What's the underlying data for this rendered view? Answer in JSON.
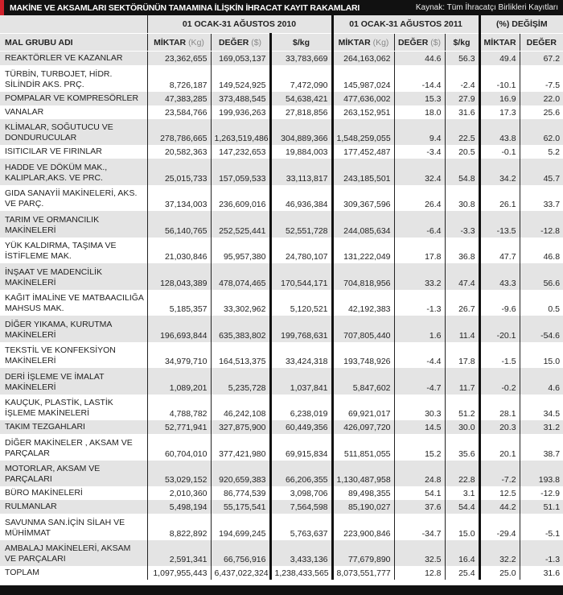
{
  "title": "MAKİNE VE AKSAMLARI SEKTÖRÜNÜN TAMAMINA İLİŞKİN İHRACAT KAYIT RAKAMLARI",
  "source": "Kaynak: Tüm İhracatçı Birlikleri Kayıtları",
  "groups": {
    "p2010": "01 OCAK-31 AĞUSTOS 2010",
    "p2011": "01 OCAK-31 AĞUSTOS 2011",
    "change": "(%) DEĞİŞİM"
  },
  "columns": {
    "name": "MAL GRUBU ADI",
    "miktar": "MİKTAR",
    "kg": "(Kg)",
    "deger": "DEĞER",
    "usd": "($)",
    "perkg": "$/kg",
    "c_miktar": "MİKTAR",
    "c_deger": "DEĞER"
  },
  "rows": [
    [
      "REAKTÖRLER VE KAZANLAR",
      "23,362,655",
      "169,053,137",
      "33,783,669",
      "264,163,062",
      "44.6",
      "56.3",
      "49.4",
      "67.2"
    ],
    [
      "TÜRBİN, TURBOJET, HİDR. SİLİNDİR AKS. PRÇ.",
      "8,726,187",
      "149,524,925",
      "7,472,090",
      "145,987,024",
      "-14.4",
      "-2.4",
      "-10.1",
      "-7.5"
    ],
    [
      "POMPALAR VE KOMPRESÖRLER",
      "47,383,285",
      "373,488,545",
      "54,638,421",
      "477,636,002",
      "15.3",
      "27.9",
      "16.9",
      "22.0"
    ],
    [
      "VANALAR",
      "23,584,766",
      "199,936,263",
      "27,818,856",
      "263,152,951",
      "18.0",
      "31.6",
      "17.3",
      "25.6"
    ],
    [
      "KLİMALAR, SOĞUTUCU VE DONDURUCULAR",
      "278,786,665",
      "1,263,519,486",
      "304,889,366",
      "1,548,259,055",
      "9.4",
      "22.5",
      "43.8",
      "62.0"
    ],
    [
      "ISITICILAR VE FIRINLAR",
      "20,582,363",
      "147,232,653",
      "19,884,003",
      "177,452,487",
      "-3.4",
      "20.5",
      "-0.1",
      "5.2"
    ],
    [
      "HADDE VE DÖKÜM MAK., KALIPLAR,AKS. VE PRC.",
      "25,015,733",
      "157,059,533",
      "33,113,817",
      "243,185,501",
      "32.4",
      "54.8",
      "34.2",
      "45.7"
    ],
    [
      "GIDA SANAYİİ MAKİNELERİ, AKS. VE PARÇ.",
      "37,134,003",
      "236,609,016",
      "46,936,384",
      "309,367,596",
      "26.4",
      "30.8",
      "26.1",
      "33.7"
    ],
    [
      "TARIM VE ORMANCILIK MAKİNELERİ",
      "56,140,765",
      "252,525,441",
      "52,551,728",
      "244,085,634",
      "-6.4",
      "-3.3",
      "-13.5",
      "-12.8"
    ],
    [
      "YÜK KALDIRMA, TAŞIMA VE İSTİFLEME MAK.",
      "21,030,846",
      "95,957,380",
      "24,780,107",
      "131,222,049",
      "17.8",
      "36.8",
      "47.7",
      "46.8"
    ],
    [
      "İNŞAAT VE MADENCİLİK MAKİNELERİ",
      "128,043,389",
      "478,074,465",
      "170,544,171",
      "704,818,956",
      "33.2",
      "47.4",
      "43.3",
      "56.6"
    ],
    [
      "KAĞIT İMALİNE VE MATBAACILIĞA MAHSUS MAK.",
      "5,185,357",
      "33,302,962",
      "5,120,521",
      "42,192,383",
      "-1.3",
      "26.7",
      "-9.6",
      "0.5"
    ],
    [
      "DİĞER YIKAMA, KURUTMA MAKİNELERİ",
      "196,693,844",
      "635,383,802",
      "199,768,631",
      "707,805,440",
      "1.6",
      "11.4",
      "-20.1",
      "-54.6"
    ],
    [
      "TEKSTİL VE KONFEKSİYON MAKİNELERİ",
      "34,979,710",
      "164,513,375",
      "33,424,318",
      "193,748,926",
      "-4.4",
      "17.8",
      "-1.5",
      "15.0"
    ],
    [
      "DERİ İŞLEME VE İMALAT MAKİNELERİ",
      "1,089,201",
      "5,235,728",
      "1,037,841",
      "5,847,602",
      "-4.7",
      "11.7",
      "-0.2",
      "4.6"
    ],
    [
      "KAUÇUK, PLASTİK, LASTİK İŞLEME MAKİNELERİ",
      "4,788,782",
      "46,242,108",
      "6,238,019",
      "69,921,017",
      "30.3",
      "51.2",
      "28.1",
      "34.5"
    ],
    [
      "TAKIM TEZGAHLARI",
      "52,771,941",
      "327,875,900",
      "60,449,356",
      "426,097,720",
      "14.5",
      "30.0",
      "20.3",
      "31.2"
    ],
    [
      "DİĞER MAKİNELER , AKSAM VE PARÇALAR",
      "60,704,010",
      "377,421,980",
      "69,915,834",
      "511,851,055",
      "15.2",
      "35.6",
      "20.1",
      "38.7"
    ],
    [
      "MOTORLAR, AKSAM VE PARÇALARI",
      "53,029,152",
      "920,659,383",
      "66,206,355",
      "1,130,487,958",
      "24.8",
      "22.8",
      "-7.2",
      "193.8"
    ],
    [
      "BÜRO  MAKİNELERİ",
      "2,010,360",
      "86,774,539",
      "3,098,706",
      "89,498,355",
      "54.1",
      "3.1",
      "12.5",
      "-12.9"
    ],
    [
      "RULMANLAR",
      "5,498,194",
      "55,175,541",
      "7,564,598",
      "85,190,027",
      "37.6",
      "54.4",
      "44.2",
      "51.1"
    ],
    [
      "SAVUNMA SAN.İÇİN SİLAH VE MÜHİMMAT",
      "8,822,892",
      "194,699,245",
      "5,763,637",
      "223,900,846",
      "-34.7",
      "15.0",
      "-29.4",
      "-5.1"
    ],
    [
      "AMBALAJ MAKİNELERİ, AKSAM VE PARÇALARI",
      "2,591,341",
      "66,756,916",
      "3,433,136",
      "77,679,890",
      "32.5",
      "16.4",
      "32.2",
      "-1.3"
    ],
    [
      "TOPLAM",
      "1,097,955,443",
      "6,437,022,324",
      "1,238,433,565",
      "8,073,551,777",
      "12.8",
      "25.4",
      "25.0",
      "31.6"
    ]
  ],
  "colors": {
    "accent": "#d0202a",
    "header_bg": "#111111",
    "row_shade": "#e4e4e4"
  }
}
